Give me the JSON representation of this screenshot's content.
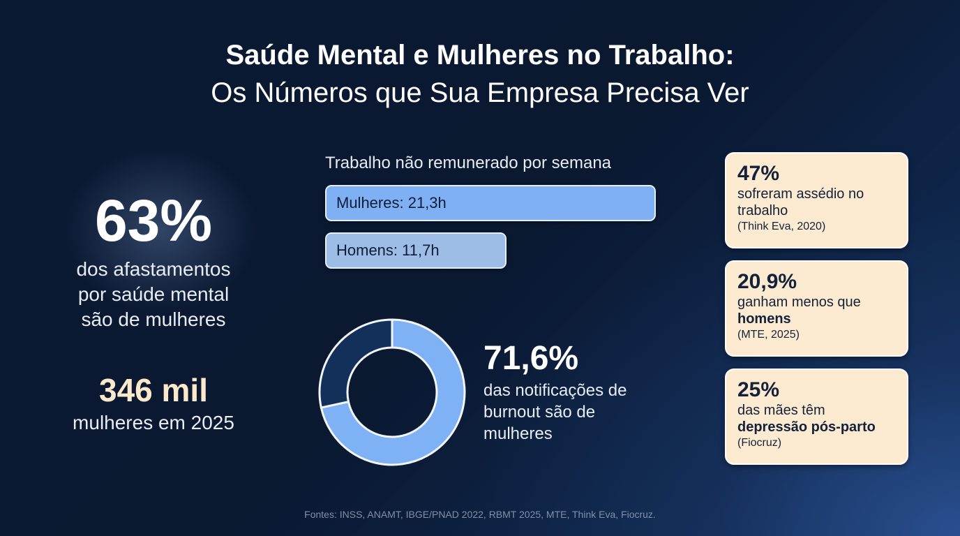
{
  "title": {
    "line1": "Saúde Mental e Mulheres no Trabalho:",
    "line2": "Os Números que Sua Empresa Precisa Ver"
  },
  "left": {
    "stat1_value": "63%",
    "stat1_desc": "dos afastamentos por saúde mental são de mulheres",
    "stat2_value": "346 mil",
    "stat2_desc": "mulheres em 2025"
  },
  "chart_data": [
    {
      "type": "bar",
      "orientation": "horizontal",
      "title": "Trabalho não remunerado por semana",
      "categories": [
        "Mulheres",
        "Homens"
      ],
      "values": [
        21.3,
        11.7
      ],
      "labels": [
        "Mulheres: 21,3h",
        "Homens: 11,7h"
      ],
      "unit": "h",
      "colors": [
        "#7fb0f3",
        "#9dbde6"
      ]
    },
    {
      "type": "pie",
      "variant": "donut",
      "values": [
        71.6,
        28.4
      ],
      "colors": [
        "#7fb2f5",
        "#13305a"
      ],
      "stat": "71,6%",
      "description": "das notificações de burnout são de mulheres"
    }
  ],
  "cards": [
    {
      "value": "47%",
      "desc": "sofreram assédio no trabalho",
      "desc_bold": "",
      "source": "(Think Eva, 2020)"
    },
    {
      "value": "20,9%",
      "desc": "ganham menos que",
      "desc_bold": "homens",
      "source": "(MTE, 2025)"
    },
    {
      "value": "25%",
      "desc": "das mães têm",
      "desc_bold": "depressão pós-parto",
      "source": "(Fiocruz)"
    }
  ],
  "footer": "Fontes: INSS, ANAMT, IBGE/PNAD 2022, RBMT 2025, MTE, Think Eva, Fiocruz."
}
